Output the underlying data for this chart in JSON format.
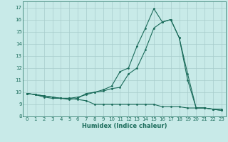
{
  "xlabel": "Humidex (Indice chaleur)",
  "bg_color": "#c8eae8",
  "grid_color": "#a8cccc",
  "line_color": "#1a6b5a",
  "xlim": [
    -0.5,
    23.5
  ],
  "ylim": [
    8,
    17.5
  ],
  "yticks": [
    8,
    9,
    10,
    11,
    12,
    13,
    14,
    15,
    16,
    17
  ],
  "xticks": [
    0,
    1,
    2,
    3,
    4,
    5,
    6,
    7,
    8,
    9,
    10,
    11,
    12,
    13,
    14,
    15,
    16,
    17,
    18,
    19,
    20,
    21,
    22,
    23
  ],
  "line1_x": [
    0,
    1,
    2,
    3,
    4,
    5,
    6,
    7,
    8,
    9,
    10,
    11,
    12,
    13,
    14,
    15,
    16,
    17,
    18,
    19,
    20,
    21,
    22,
    23
  ],
  "line1_y": [
    9.9,
    9.8,
    9.7,
    9.6,
    9.5,
    9.5,
    9.4,
    9.3,
    9.0,
    9.0,
    9.0,
    9.0,
    9.0,
    9.0,
    9.0,
    9.0,
    8.8,
    8.8,
    8.8,
    8.7,
    8.7,
    8.7,
    8.6,
    8.6
  ],
  "line2_x": [
    0,
    1,
    2,
    3,
    4,
    5,
    6,
    7,
    8,
    9,
    10,
    11,
    12,
    13,
    14,
    15,
    16,
    17,
    18,
    19,
    20,
    21,
    22,
    23
  ],
  "line2_y": [
    9.9,
    9.8,
    9.7,
    9.6,
    9.5,
    9.5,
    9.6,
    9.8,
    10.0,
    10.1,
    10.3,
    10.4,
    11.5,
    12.0,
    13.5,
    15.3,
    15.8,
    16.0,
    14.5,
    11.5,
    8.7,
    8.7,
    8.6,
    8.5
  ],
  "line3_x": [
    0,
    1,
    2,
    3,
    4,
    5,
    6,
    7,
    8,
    9,
    10,
    11,
    12,
    13,
    14,
    15,
    16,
    17,
    18,
    19,
    20,
    21,
    22,
    23
  ],
  "line3_y": [
    9.9,
    9.8,
    9.6,
    9.5,
    9.5,
    9.4,
    9.5,
    9.9,
    10.0,
    10.2,
    10.5,
    11.7,
    12.0,
    13.8,
    15.3,
    16.9,
    15.8,
    16.0,
    14.5,
    11.0,
    8.7,
    8.7,
    8.6,
    8.5
  ],
  "tick_fontsize": 5.0,
  "xlabel_fontsize": 6.0,
  "marker_size": 2.0,
  "line_width": 0.8
}
